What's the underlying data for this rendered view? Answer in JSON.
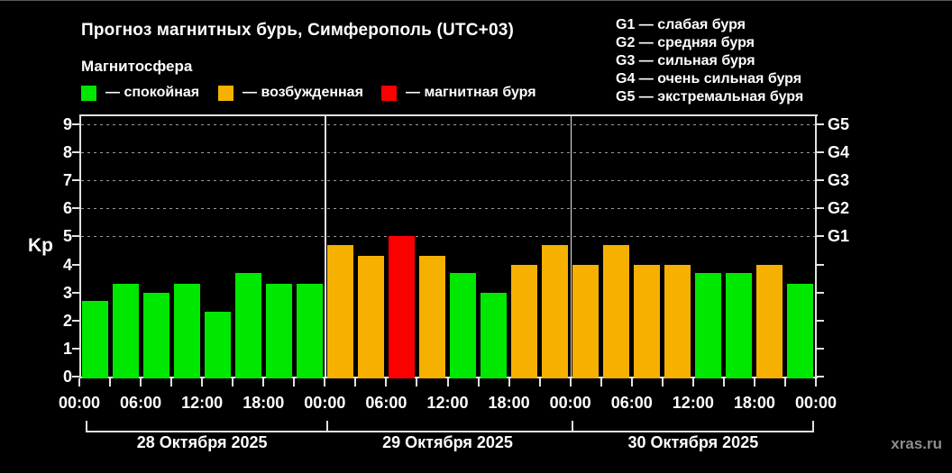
{
  "header": {
    "title": "Прогноз магнитных бурь, Симферополь (UTC+03)",
    "subtitle": "Магнитосфера",
    "legend": [
      {
        "key": "quiet",
        "label": "— спокойная"
      },
      {
        "key": "active",
        "label": "— возбужденная"
      },
      {
        "key": "storm",
        "label": "— магнитная буря"
      }
    ],
    "g_legend": [
      "G1 — слабая буря",
      "G2 — средняя буря",
      "G3 — сильная буря",
      "G4 — очень сильная буря",
      "G5 — экстремальная буря"
    ]
  },
  "watermark": "xras.ru",
  "chart_data": {
    "type": "bar",
    "title": "Прогноз магнитных бурь, Симферополь (UTC+03)",
    "ylabel": "Kp",
    "ylim": [
      0,
      9
    ],
    "yticks": [
      0,
      1,
      2,
      3,
      4,
      5,
      6,
      7,
      8,
      9
    ],
    "gridlines_at_kp": [
      5,
      6,
      7,
      8,
      9
    ],
    "right_axis_labels": [
      {
        "kp": 5,
        "label": "G1"
      },
      {
        "kp": 6,
        "label": "G2"
      },
      {
        "kp": 7,
        "label": "G3"
      },
      {
        "kp": 8,
        "label": "G4"
      },
      {
        "kp": 9,
        "label": "G5"
      }
    ],
    "x_tick_labels": [
      "00:00",
      "06:00",
      "12:00",
      "18:00",
      "00:00",
      "06:00",
      "12:00",
      "18:00",
      "00:00",
      "06:00",
      "12:00",
      "18:00",
      "00:00"
    ],
    "bar_interval_hours": 3,
    "status_colors": {
      "quiet": "#00e800",
      "active": "#f6b100",
      "storm": "#fc0000"
    },
    "days": [
      {
        "date": "28 Октября 2025",
        "values": [
          2.7,
          3.3,
          3.0,
          3.3,
          2.3,
          3.7,
          3.3,
          3.3
        ],
        "statuses": [
          "quiet",
          "quiet",
          "quiet",
          "quiet",
          "quiet",
          "quiet",
          "quiet",
          "quiet"
        ]
      },
      {
        "date": "29 Октября 2025",
        "values": [
          4.7,
          4.3,
          5.0,
          4.3,
          3.7,
          3.0,
          4.0,
          4.7
        ],
        "statuses": [
          "active",
          "active",
          "storm",
          "active",
          "quiet",
          "quiet",
          "active",
          "active"
        ]
      },
      {
        "date": "30 Октября 2025",
        "values": [
          4.0,
          4.7,
          4.0,
          4.0,
          3.7,
          3.7,
          4.0,
          3.3
        ],
        "statuses": [
          "active",
          "active",
          "active",
          "active",
          "quiet",
          "quiet",
          "active",
          "quiet"
        ]
      }
    ]
  }
}
